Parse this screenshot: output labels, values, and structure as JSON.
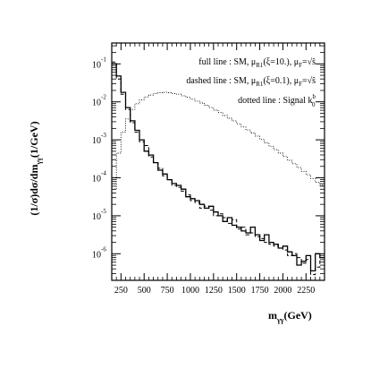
{
  "chart_data": {
    "type": "line",
    "plot_kind": "step histogram",
    "xlabel": "m",
    "xlabel_subscript": "γγ",
    "xlabel_unit": "(GeV)",
    "ylabel": "(1/σ)dσ/dm",
    "ylabel_subscript": "γγ",
    "ylabel_unit": "(1/GeV)",
    "xlim": [
      150,
      2450
    ],
    "ylim_log10": [
      -6.7,
      -0.45
    ],
    "y_scale": "log",
    "grid": false,
    "x_ticks": [
      250,
      500,
      750,
      1000,
      1250,
      1500,
      1750,
      2000,
      2250
    ],
    "y_ticks": [
      {
        "exp": -1,
        "label": "10",
        "sup": "-1"
      },
      {
        "exp": -2,
        "label": "10",
        "sup": "-2"
      },
      {
        "exp": -3,
        "label": "10",
        "sup": "-3"
      },
      {
        "exp": -4,
        "label": "10",
        "sup": "-4"
      },
      {
        "exp": -5,
        "label": "10",
        "sup": "-5"
      },
      {
        "exp": -6,
        "label": "10",
        "sup": "-6"
      }
    ],
    "legend": {
      "placement": "top-right",
      "entries": [
        {
          "text": "full line : SM, μ",
          "sub": "R1",
          "text2": "(ξ=10.), μ",
          "sub2": "F",
          "text3": "=√ŝ"
        },
        {
          "text": "dashed line : SM, μ",
          "sub": "R1",
          "text2": "(ξ=0.1), μ",
          "sub2": "F",
          "text3": "=√ŝ"
        },
        {
          "text": "dotted line : Signal k",
          "sub": "0",
          "sup": "b",
          "text2": "",
          "sub2": "",
          "text3": ""
        }
      ]
    },
    "bin_edges_start": 150,
    "bin_width": 50,
    "series": [
      {
        "style": "solid",
        "log10_values": [
          -1.0,
          -1.32,
          -1.75,
          -2.15,
          -2.5,
          -2.75,
          -3.0,
          -3.3,
          -3.4,
          -3.6,
          -3.8,
          -3.9,
          -4.05,
          -4.15,
          -4.2,
          -4.3,
          -4.5,
          -4.55,
          -4.6,
          -4.7,
          -4.8,
          -4.75,
          -4.9,
          -5.0,
          -5.15,
          -5.05,
          -5.25,
          -5.3,
          -5.4,
          -5.45,
          -5.3,
          -5.5,
          -5.65,
          -5.5,
          -5.7,
          -5.75,
          -5.85,
          -5.8,
          -5.95,
          -6.05,
          -6.3,
          -6.2,
          -6.05,
          -6.45,
          -6.0,
          -6.1
        ]
      },
      {
        "style": "dashed",
        "log10_values": [
          -0.95,
          -1.4,
          -1.8,
          -2.2,
          -2.55,
          -2.8,
          -3.05,
          -3.15,
          -3.45,
          -3.6,
          -3.75,
          -3.95,
          -4.05,
          -4.2,
          -4.25,
          -4.35,
          -4.45,
          -4.6,
          -4.65,
          -4.8,
          -4.75,
          -4.85,
          -5.0,
          -4.95,
          -5.05,
          -5.2,
          -5.1,
          -5.35,
          -5.3,
          -5.5,
          -5.45,
          -5.55,
          -5.6,
          -5.7,
          -5.75,
          -5.8,
          -5.85,
          -5.9,
          -6.05,
          -6.0,
          -6.1,
          -6.25,
          -6.15,
          -6.55,
          -6.35,
          -6.1
        ]
      },
      {
        "style": "dotted",
        "log10_values": [
          -4.3,
          -3.35,
          -2.8,
          -2.45,
          -2.2,
          -2.05,
          -1.95,
          -1.87,
          -1.82,
          -1.78,
          -1.76,
          -1.75,
          -1.76,
          -1.78,
          -1.8,
          -1.84,
          -1.88,
          -1.93,
          -1.98,
          -2.03,
          -2.09,
          -2.15,
          -2.22,
          -2.28,
          -2.36,
          -2.43,
          -2.5,
          -2.58,
          -2.66,
          -2.74,
          -2.82,
          -2.9,
          -2.99,
          -3.08,
          -3.17,
          -3.26,
          -3.35,
          -3.44,
          -3.54,
          -3.63,
          -3.73,
          -3.83,
          -3.92,
          -4.02,
          -4.12,
          -4.2
        ]
      }
    ]
  }
}
